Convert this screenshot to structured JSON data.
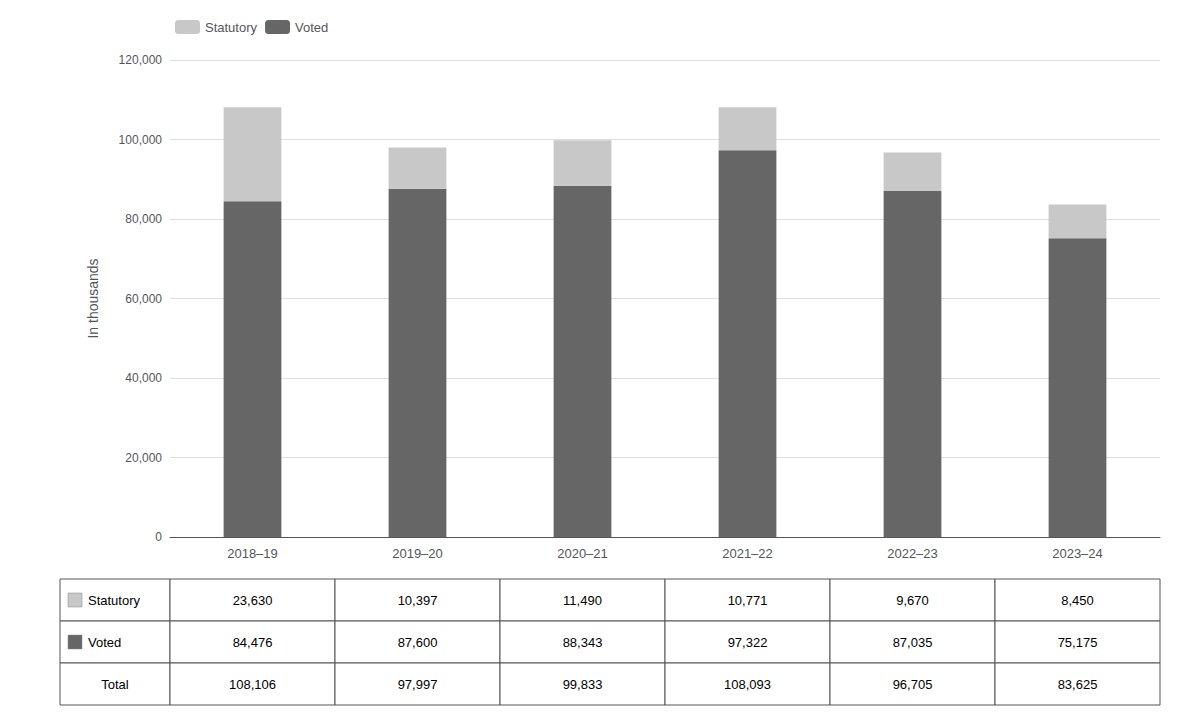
{
  "chart_data": {
    "type": "bar",
    "stacked": true,
    "ylabel": "In thousands",
    "categories": [
      "2018–19",
      "2019–20",
      "2020–21",
      "2021–22",
      "2022–23",
      "2023–24"
    ],
    "series": [
      {
        "name": "Voted",
        "color": "#666666",
        "values": [
          84476,
          87600,
          88343,
          97322,
          87035,
          75175
        ]
      },
      {
        "name": "Statutory",
        "color": "#c8c8c8",
        "values": [
          23630,
          10397,
          11490,
          10771,
          9670,
          8450
        ]
      }
    ],
    "ylim": [
      0,
      120000
    ],
    "yticks": [
      0,
      {
        "value": 20000,
        "label": "20,000"
      },
      {
        "value": 40000,
        "label": "40,000"
      },
      {
        "value": 60000,
        "label": "60,000"
      },
      {
        "value": 80000,
        "label": "80,000"
      },
      {
        "value": 100000,
        "label": "100,000"
      },
      {
        "value": 120000,
        "label": "120,000"
      }
    ],
    "grid": true,
    "legend": "upper left",
    "table": {
      "row_labels": [
        "Statutory",
        "Voted",
        "Total"
      ],
      "rows": [
        [
          "23,630",
          "10,397",
          "11,490",
          "10,771",
          "9,670",
          "8,450"
        ],
        [
          "84,476",
          "87,600",
          "88,343",
          "97,322",
          "87,035",
          "75,175"
        ],
        [
          "108,106",
          "97,997",
          "99,833",
          "108,093",
          "96,705",
          "83,625"
        ]
      ]
    }
  }
}
